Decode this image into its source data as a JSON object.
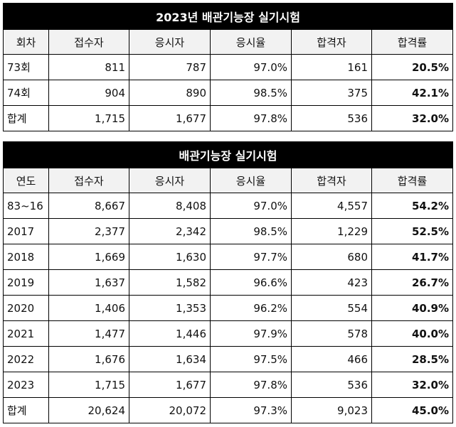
{
  "tables": [
    {
      "title": "2023년 배관기능장 실기시험",
      "headers": [
        "회차",
        "접수자",
        "응시자",
        "응시율",
        "합격자",
        "합격률"
      ],
      "rows": [
        [
          "73회",
          "811",
          "787",
          "97.0%",
          "161",
          "20.5%"
        ],
        [
          "74회",
          "904",
          "890",
          "98.5%",
          "375",
          "42.1%"
        ],
        [
          "합계",
          "1,715",
          "1,677",
          "97.8%",
          "536",
          "32.0%"
        ]
      ]
    },
    {
      "title": "배관기능장 실기시험",
      "headers": [
        "연도",
        "접수자",
        "응시자",
        "응시율",
        "합격자",
        "합격률"
      ],
      "rows": [
        [
          "83~16",
          "8,667",
          "8,408",
          "97.0%",
          "4,557",
          "54.2%"
        ],
        [
          "2017",
          "2,377",
          "2,342",
          "98.5%",
          "1,229",
          "52.5%"
        ],
        [
          "2018",
          "1,669",
          "1,630",
          "97.7%",
          "680",
          "41.7%"
        ],
        [
          "2019",
          "1,637",
          "1,582",
          "96.6%",
          "423",
          "26.7%"
        ],
        [
          "2020",
          "1,406",
          "1,353",
          "96.2%",
          "554",
          "40.9%"
        ],
        [
          "2021",
          "1,477",
          "1,446",
          "97.9%",
          "578",
          "40.0%"
        ],
        [
          "2022",
          "1,676",
          "1,634",
          "97.5%",
          "466",
          "28.5%"
        ],
        [
          "2023",
          "1,715",
          "1,677",
          "97.8%",
          "536",
          "32.0%"
        ],
        [
          "합계",
          "20,624",
          "20,072",
          "97.3%",
          "9,023",
          "45.0%"
        ]
      ]
    }
  ]
}
